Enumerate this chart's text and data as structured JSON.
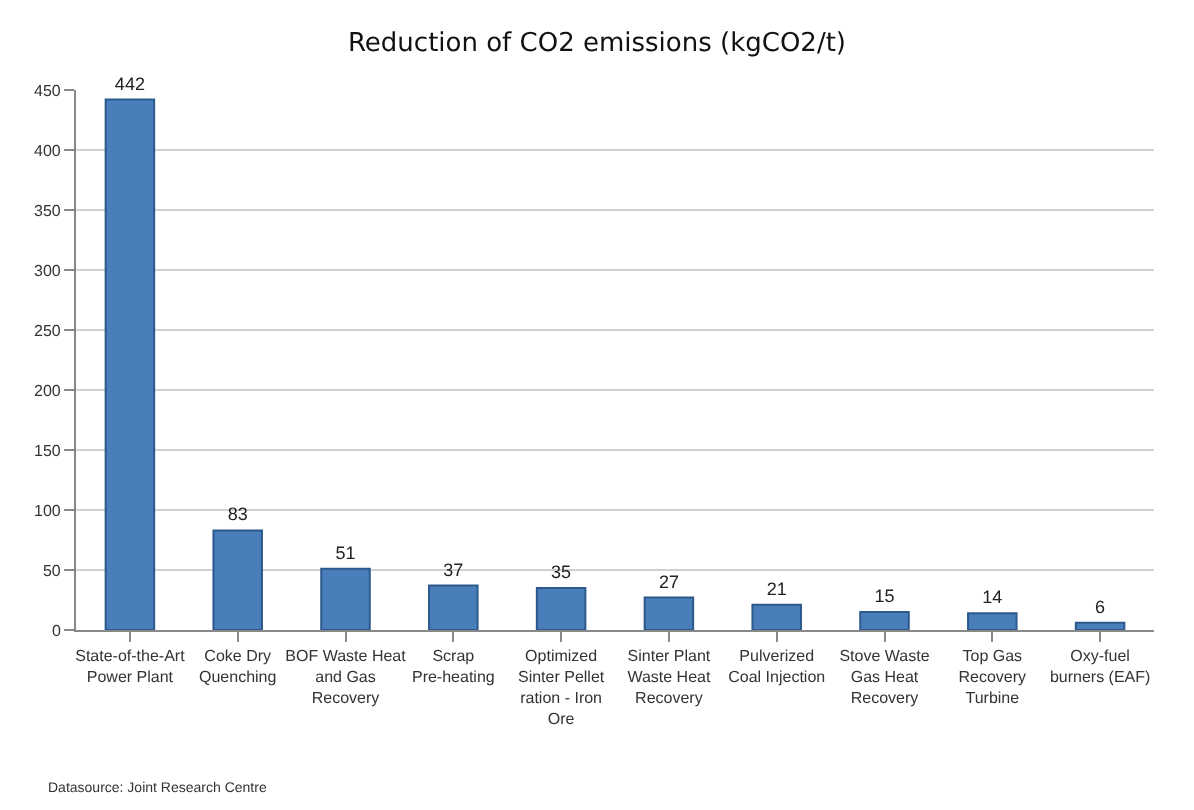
{
  "chart_data": {
    "type": "bar",
    "title": "Reduction of CO2 emissions (kgCO2/t)",
    "categories": [
      "State-of-the-Art Power Plant",
      "Coke Dry Quenching",
      "BOF Waste Heat and Gas Recovery",
      "Scrap Pre-heating",
      "Optimized Sinter Pellet ration - Iron Ore",
      "Sinter Plant Waste Heat Recovery",
      "Pulverized Coal Injection",
      "Stove Waste Gas Heat Recovery",
      "Top Gas Recovery Turbine",
      "Oxy-fuel burners (EAF)"
    ],
    "values": [
      442,
      83,
      51,
      37,
      35,
      27,
      21,
      15,
      14,
      6
    ],
    "color": "#4a7ebb",
    "ylim": [
      0,
      450
    ],
    "yticks": [
      0,
      50,
      100,
      150,
      200,
      250,
      300,
      350,
      400,
      450
    ],
    "grid": "y",
    "data_labels": true,
    "legend": false,
    "annotations": [
      "Datasource: Joint Research Centre"
    ]
  }
}
